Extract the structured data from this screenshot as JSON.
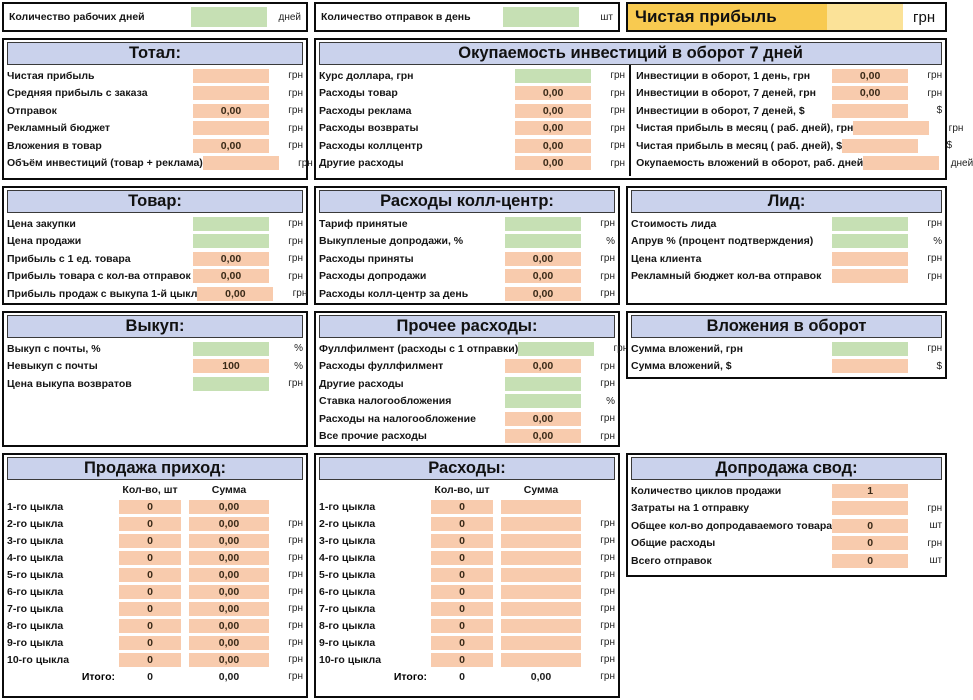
{
  "colors": {
    "panel_header_bg": "#cad2ec",
    "input_cell_bg": "#c6e0b4",
    "calc_cell_bg": "#f8cbad",
    "highlight_label_bg": "#f8ca50",
    "highlight_cell_bg": "#fbe298",
    "border": "#0b0b0b"
  },
  "top_inputs": [
    {
      "label": "Количество рабочих дней",
      "value": "",
      "cell": "green",
      "unit": "дней"
    },
    {
      "label": "Количество отправок в день",
      "value": "",
      "cell": "green",
      "unit": "шт"
    },
    {
      "label": "Чистая прибыль",
      "value": "",
      "unit": "грн"
    }
  ],
  "panels": {
    "total": {
      "title": "Тотал:",
      "rows": [
        {
          "label": "Чистая прибыль",
          "value": "",
          "cell": "orange",
          "unit": "грн"
        },
        {
          "label": "Средняя прибыль с заказа",
          "value": "",
          "cell": "orange",
          "unit": "грн"
        },
        {
          "label": "Отправок",
          "value": "0,00",
          "cell": "orange",
          "unit": "грн"
        },
        {
          "label": "Рекламный бюджет",
          "value": "",
          "cell": "orange",
          "unit": "грн"
        },
        {
          "label": "Вложения в товар",
          "value": "0,00",
          "cell": "orange",
          "unit": "грн"
        },
        {
          "label": "Объём инвестиций (товар + реклама)",
          "value": "",
          "cell": "orange",
          "unit": "грн"
        }
      ]
    },
    "payback": {
      "title": "Окупаемость инвестиций в оборот 7 дней",
      "left_rows": [
        {
          "label": "Курс доллара, грн",
          "value": "",
          "cell": "green",
          "unit": "грн"
        },
        {
          "label": "Расходы товар",
          "value": "0,00",
          "cell": "orange",
          "unit": "грн"
        },
        {
          "label": "Расходы реклама",
          "value": "0,00",
          "cell": "orange",
          "unit": "грн"
        },
        {
          "label": "Расходы возвраты",
          "value": "0,00",
          "cell": "orange",
          "unit": "грн"
        },
        {
          "label": "Расходы коллцентр",
          "value": "0,00",
          "cell": "orange",
          "unit": "грн"
        },
        {
          "label": "Другие расходы",
          "value": "0,00",
          "cell": "orange",
          "unit": "грн"
        }
      ],
      "right_rows": [
        {
          "label": "Инвестиции в оборот, 1 день, грн",
          "value": "0,00",
          "cell": "orange",
          "unit": "грн"
        },
        {
          "label": "Инвестиции в оборот, 7 деней, грн",
          "value": "0,00",
          "cell": "orange",
          "unit": "грн"
        },
        {
          "label": "Инвестиции в оборот, 7 деней, $",
          "value": "",
          "cell": "orange",
          "unit": "$"
        },
        {
          "label": "Чистая прибыль в месяц ( раб. дней), грн",
          "value": "",
          "cell": "orange",
          "unit": "грн"
        },
        {
          "label": "Чистая прибыль в месяц ( раб. дней), $",
          "value": "",
          "cell": "orange",
          "unit": "$"
        },
        {
          "label": "Окупаемость вложений в оборот, раб. дней",
          "value": "",
          "cell": "orange",
          "unit": "дней"
        }
      ]
    },
    "product": {
      "title": "Товар:",
      "rows": [
        {
          "label": "Цена закупки",
          "value": "",
          "cell": "green",
          "unit": "грн"
        },
        {
          "label": "Цена продажи",
          "value": "",
          "cell": "green",
          "unit": "грн"
        },
        {
          "label": "Прибыль с 1 ед. товара",
          "value": "0,00",
          "cell": "orange",
          "unit": "грн"
        },
        {
          "label": "Прибыль товара с кол-ва отправок",
          "value": "0,00",
          "cell": "orange",
          "unit": "грн"
        },
        {
          "label": "Прибыль продаж с выкупа 1-й цыкл",
          "value": "0,00",
          "cell": "orange",
          "unit": "грн"
        }
      ]
    },
    "callcenter": {
      "title": "Расходы колл-центр:",
      "rows": [
        {
          "label": "Тариф принятые",
          "value": "",
          "cell": "green",
          "unit": "грн"
        },
        {
          "label": "Выкупленые допродажи, %",
          "value": "",
          "cell": "green",
          "unit": "%"
        },
        {
          "label": "Расходы приняты",
          "value": "0,00",
          "cell": "orange",
          "unit": "грн"
        },
        {
          "label": "Расходы допродажи",
          "value": "0,00",
          "cell": "orange",
          "unit": "грн"
        },
        {
          "label": "Расходы колл-центр за день",
          "value": "0,00",
          "cell": "orange",
          "unit": "грн"
        }
      ]
    },
    "lead": {
      "title": "Лид:",
      "rows": [
        {
          "label": "Стоимость лида",
          "value": "",
          "cell": "green",
          "unit": "грн"
        },
        {
          "label": "Апрув % (процент подтверждения)",
          "value": "",
          "cell": "green",
          "unit": "%"
        },
        {
          "label": "Цена клиента",
          "value": "",
          "cell": "orange",
          "unit": "грн"
        },
        {
          "label": "Рекламный бюджет кол-ва отправок",
          "value": "",
          "cell": "orange",
          "unit": "грн"
        }
      ]
    },
    "buyout": {
      "title": "Выкуп:",
      "rows": [
        {
          "label": "Выкуп с почты, %",
          "value": "",
          "cell": "green",
          "unit": "%"
        },
        {
          "label": "Невыкуп с почты",
          "value": "100",
          "cell": "orange",
          "unit": "%"
        },
        {
          "label": "Цена выкупа возвратов",
          "value": "",
          "cell": "green",
          "unit": "грн"
        }
      ]
    },
    "other_expenses": {
      "title": "Прочее расходы:",
      "rows": [
        {
          "label": "Фуллфилмент (расходы с 1 отправки)",
          "value": "",
          "cell": "green",
          "unit": "грн"
        },
        {
          "label": "Расходы фуллфилмент",
          "value": "0,00",
          "cell": "orange",
          "unit": "грн"
        },
        {
          "label": "Другие расходы",
          "value": "",
          "cell": "green",
          "unit": "грн"
        },
        {
          "label": "Ставка налогообложения",
          "value": "",
          "cell": "green",
          "unit": "%"
        },
        {
          "label": "Расходы на налогообложение",
          "value": "0,00",
          "cell": "orange",
          "unit": "грн"
        },
        {
          "label": "Все прочие расходы",
          "value": "0,00",
          "cell": "orange",
          "unit": "грн"
        }
      ]
    },
    "investments": {
      "title": "Вложения в оборот",
      "rows": [
        {
          "label": "Сумма вложений, грн",
          "value": "",
          "cell": "green",
          "unit": "грн"
        },
        {
          "label": "Сумма вложений, $",
          "value": "",
          "cell": "orange",
          "unit": "$"
        }
      ]
    },
    "sales_income": {
      "title": "Продажа приход:",
      "col_headers": [
        "Кол-во, шт",
        "Сумма"
      ],
      "rows": [
        {
          "label": "1-го цыкла",
          "qty": "0",
          "sum": "0,00",
          "unit": ""
        },
        {
          "label": "2-го цыкла",
          "qty": "0",
          "sum": "0,00",
          "unit": "грн"
        },
        {
          "label": "3-го цыкла",
          "qty": "0",
          "sum": "0,00",
          "unit": "грн"
        },
        {
          "label": "4-го цыкла",
          "qty": "0",
          "sum": "0,00",
          "unit": "грн"
        },
        {
          "label": "5-го цыкла",
          "qty": "0",
          "sum": "0,00",
          "unit": "грн"
        },
        {
          "label": "6-го цыкла",
          "qty": "0",
          "sum": "0,00",
          "unit": "грн"
        },
        {
          "label": "7-го цыкла",
          "qty": "0",
          "sum": "0,00",
          "unit": "грн"
        },
        {
          "label": "8-го цыкла",
          "qty": "0",
          "sum": "0,00",
          "unit": "грн"
        },
        {
          "label": "9-го цыкла",
          "qty": "0",
          "sum": "0,00",
          "unit": "грн"
        },
        {
          "label": "10-го цыкла",
          "qty": "0",
          "sum": "0,00",
          "unit": "грн"
        }
      ],
      "total": {
        "label": "Итого:",
        "qty": "0",
        "sum": "0,00",
        "unit": "грн"
      }
    },
    "expenses": {
      "title": "Расходы:",
      "col_headers": [
        "Кол-во, шт",
        "Сумма"
      ],
      "rows": [
        {
          "label": "1-го цыкла",
          "qty": "0",
          "sum": "",
          "unit": ""
        },
        {
          "label": "2-го цыкла",
          "qty": "0",
          "sum": "",
          "unit": "грн"
        },
        {
          "label": "3-го цыкла",
          "qty": "0",
          "sum": "",
          "unit": "грн"
        },
        {
          "label": "4-го цыкла",
          "qty": "0",
          "sum": "",
          "unit": "грн"
        },
        {
          "label": "5-го цыкла",
          "qty": "0",
          "sum": "",
          "unit": "грн"
        },
        {
          "label": "6-го цыкла",
          "qty": "0",
          "sum": "",
          "unit": "грн"
        },
        {
          "label": "7-го цыкла",
          "qty": "0",
          "sum": "",
          "unit": "грн"
        },
        {
          "label": "8-го цыкла",
          "qty": "0",
          "sum": "",
          "unit": "грн"
        },
        {
          "label": "9-го цыкла",
          "qty": "0",
          "sum": "",
          "unit": "грн"
        },
        {
          "label": "10-го цыкла",
          "qty": "0",
          "sum": "",
          "unit": "грн"
        }
      ],
      "total": {
        "label": "Итого:",
        "qty": "0",
        "sum": "0,00",
        "unit": "грн"
      }
    },
    "upsell_summary": {
      "title": "Допродажа свод:",
      "rows": [
        {
          "label": "Количество циклов продажи",
          "value": "1",
          "cell": "orange",
          "unit": ""
        },
        {
          "label": "Затраты на 1 отправку",
          "value": "",
          "cell": "orange",
          "unit": "грн"
        },
        {
          "label": "Общее кол-во допродаваемого товара",
          "value": "0",
          "cell": "orange",
          "unit": "шт"
        },
        {
          "label": "Общие расходы",
          "value": "0",
          "cell": "orange",
          "unit": "грн"
        },
        {
          "label": "Всего отправок",
          "value": "0",
          "cell": "orange",
          "unit": "шт"
        }
      ]
    }
  }
}
